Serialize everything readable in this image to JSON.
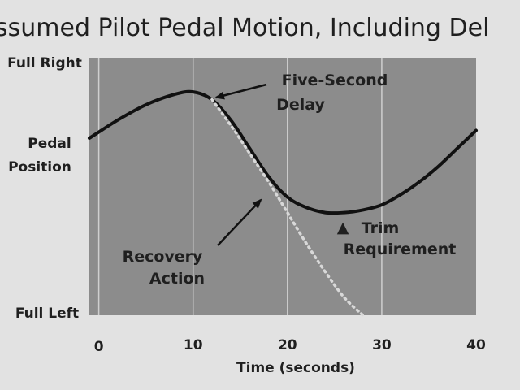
{
  "chart_data": {
    "type": "line",
    "title": "ssumed Pilot Pedal Motion, Including Del",
    "xlabel": "Time (seconds)",
    "ylabel": "Pedal Position",
    "ylabel_lines": [
      "Pedal",
      "Position"
    ],
    "y_top_label": "Full Right",
    "y_bottom_label": "Full Left",
    "xlim": [
      -1,
      40
    ],
    "ylim": [
      0,
      1
    ],
    "x_ticks": [
      0,
      10,
      20,
      30,
      40
    ],
    "x_tick_labels": [
      "0",
      "10",
      "20",
      "30",
      "40"
    ],
    "grid": true,
    "series": [
      {
        "style": "solid",
        "color": "#111111",
        "x": [
          -1,
          2,
          5,
          8,
          10,
          12,
          14,
          16,
          18,
          20,
          22,
          24,
          26,
          28,
          30,
          32,
          34,
          36,
          38,
          40
        ],
        "y": [
          0.69,
          0.76,
          0.82,
          0.86,
          0.87,
          0.84,
          0.76,
          0.65,
          0.54,
          0.46,
          0.42,
          0.4,
          0.4,
          0.41,
          0.43,
          0.47,
          0.52,
          0.58,
          0.65,
          0.72
        ]
      },
      {
        "style": "dotted",
        "color": "#d8d8d8",
        "x": [
          12,
          14,
          16,
          18,
          20,
          22,
          24,
          26,
          28
        ],
        "y": [
          0.84,
          0.74,
          0.63,
          0.52,
          0.4,
          0.28,
          0.17,
          0.07,
          0.0
        ]
      }
    ],
    "annotations": [
      {
        "lines": [
          "Five-Second",
          "Delay"
        ]
      },
      {
        "lines": [
          "Recovery",
          "Action"
        ]
      },
      {
        "marker": "▲",
        "lines": [
          "Trim",
          "Requirement"
        ]
      }
    ]
  },
  "colors": {
    "plot_background": "#8c8c8c",
    "gridline": "#cfcfcf",
    "page_background": "#e2e2e2"
  }
}
